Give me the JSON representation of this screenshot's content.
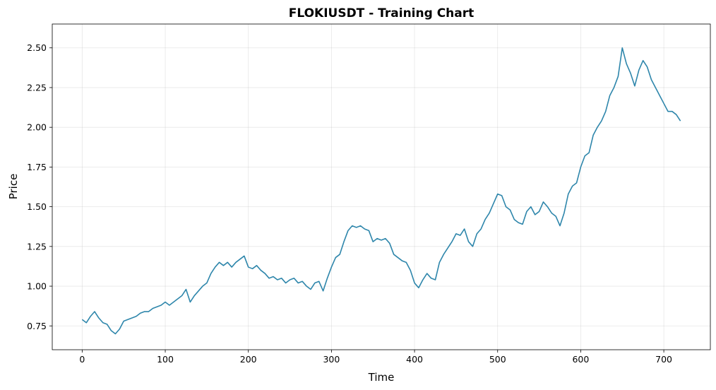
{
  "chart_data": {
    "type": "line",
    "title": "FLOKIUSDT - Training Chart",
    "xlabel": "Time",
    "ylabel": "Price",
    "xlim": [
      -36,
      756
    ],
    "ylim": [
      0.6,
      2.65
    ],
    "xticks": [
      0,
      100,
      200,
      300,
      400,
      500,
      600,
      700
    ],
    "xtick_labels": [
      "0",
      "100",
      "200",
      "300",
      "400",
      "500",
      "600",
      "700"
    ],
    "yticks": [
      0.75,
      1.0,
      1.25,
      1.5,
      1.75,
      2.0,
      2.25,
      2.5
    ],
    "ytick_labels": [
      "0.75",
      "1.00",
      "1.25",
      "1.50",
      "1.75",
      "2.00",
      "2.25",
      "2.50"
    ],
    "grid": true,
    "line_color": "#2e86ab",
    "series": [
      {
        "x": [
          0,
          5,
          10,
          15,
          20,
          25,
          30,
          35,
          40,
          45,
          50,
          55,
          60,
          65,
          70,
          75,
          80,
          85,
          90,
          95,
          100,
          105,
          110,
          115,
          120,
          125,
          130,
          135,
          140,
          145,
          150,
          155,
          160,
          165,
          170,
          175,
          180,
          185,
          190,
          195,
          200,
          205,
          210,
          215,
          220,
          225,
          230,
          235,
          240,
          245,
          250,
          255,
          260,
          265,
          270,
          275,
          280,
          285,
          290,
          295,
          300,
          305,
          310,
          315,
          320,
          325,
          330,
          335,
          340,
          345,
          350,
          355,
          360,
          365,
          370,
          375,
          380,
          385,
          390,
          395,
          400,
          405,
          410,
          415,
          420,
          425,
          430,
          435,
          440,
          445,
          450,
          455,
          460,
          465,
          470,
          475,
          480,
          485,
          490,
          495,
          500,
          505,
          510,
          515,
          520,
          525,
          530,
          535,
          540,
          545,
          550,
          555,
          560,
          565,
          570,
          575,
          580,
          585,
          590,
          595,
          600,
          605,
          610,
          615,
          620,
          625,
          630,
          635,
          640,
          645,
          650,
          655,
          660,
          665,
          670,
          675,
          680,
          685,
          690,
          695,
          700,
          705,
          710,
          715,
          720
        ],
        "values": [
          0.79,
          0.77,
          0.81,
          0.84,
          0.8,
          0.77,
          0.76,
          0.72,
          0.7,
          0.73,
          0.78,
          0.79,
          0.8,
          0.81,
          0.83,
          0.84,
          0.84,
          0.86,
          0.87,
          0.88,
          0.9,
          0.88,
          0.9,
          0.92,
          0.94,
          0.98,
          0.9,
          0.94,
          0.97,
          1.0,
          1.02,
          1.08,
          1.12,
          1.15,
          1.13,
          1.15,
          1.12,
          1.15,
          1.17,
          1.19,
          1.12,
          1.11,
          1.13,
          1.1,
          1.08,
          1.05,
          1.06,
          1.04,
          1.05,
          1.02,
          1.04,
          1.05,
          1.02,
          1.03,
          1.0,
          0.98,
          1.02,
          1.03,
          0.97,
          1.05,
          1.12,
          1.18,
          1.2,
          1.28,
          1.35,
          1.38,
          1.37,
          1.38,
          1.36,
          1.35,
          1.28,
          1.3,
          1.29,
          1.3,
          1.27,
          1.2,
          1.18,
          1.16,
          1.15,
          1.1,
          1.02,
          0.99,
          1.04,
          1.08,
          1.05,
          1.04,
          1.15,
          1.2,
          1.24,
          1.28,
          1.33,
          1.32,
          1.36,
          1.28,
          1.25,
          1.33,
          1.36,
          1.42,
          1.46,
          1.52,
          1.58,
          1.57,
          1.5,
          1.48,
          1.42,
          1.4,
          1.39,
          1.47,
          1.5,
          1.45,
          1.47,
          1.53,
          1.5,
          1.46,
          1.44,
          1.38,
          1.46,
          1.58,
          1.63,
          1.65,
          1.75,
          1.82,
          1.84,
          1.95,
          2.0,
          2.04,
          2.1,
          2.2,
          2.25,
          2.32,
          2.5,
          2.4,
          2.34,
          2.26,
          2.36,
          2.42,
          2.38,
          2.3,
          2.25,
          2.2,
          2.15,
          2.1,
          2.1,
          2.08,
          2.04
        ]
      }
    ]
  }
}
